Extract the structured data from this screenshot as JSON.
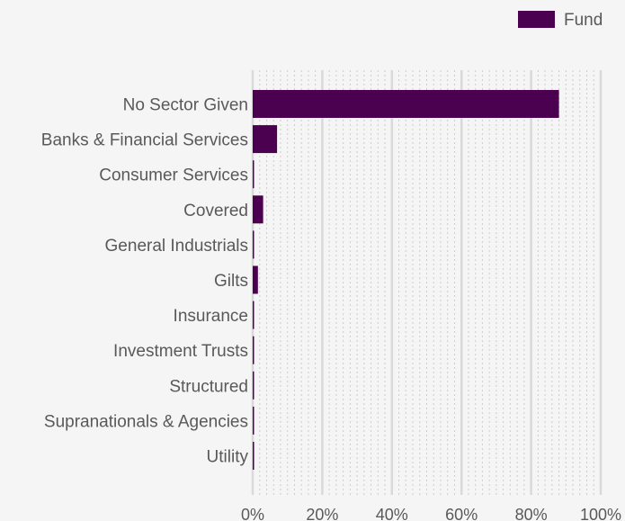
{
  "chart_data": {
    "type": "bar",
    "orientation": "horizontal",
    "categories": [
      "No Sector Given",
      "Banks & Financial Services",
      "Consumer Services",
      "Covered",
      "General Industrials",
      "Gilts",
      "Insurance",
      "Investment Trusts",
      "Structured",
      "Supranationals & Agencies",
      "Utility"
    ],
    "series": [
      {
        "name": "Fund",
        "color": "#4b0050",
        "values": [
          88.0,
          7.0,
          0.3,
          3.0,
          0.2,
          1.5,
          0.2,
          0.3,
          0.2,
          0.2,
          0.4
        ]
      }
    ],
    "xlim": [
      0,
      100
    ],
    "x_ticks": [
      0,
      20,
      40,
      60,
      80,
      100
    ],
    "x_tick_labels": [
      "0%",
      "20%",
      "40%",
      "60%",
      "80%",
      "100%"
    ],
    "grid": "vertical",
    "legend_position": "top-right",
    "colors": {
      "major_grid": "#d9d9d9",
      "minor_grid": "#cccccc"
    }
  }
}
